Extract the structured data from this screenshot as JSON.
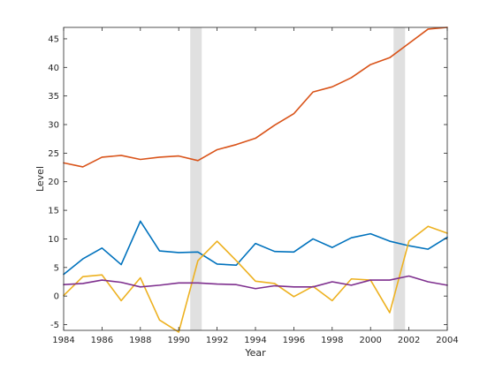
{
  "chart_data": {
    "type": "line",
    "title": "",
    "xlabel": "Year",
    "ylabel": "Level",
    "xlim": [
      1984,
      2004
    ],
    "ylim": [
      -6,
      47
    ],
    "xticks": [
      1984,
      1986,
      1988,
      1990,
      1992,
      1994,
      1996,
      1998,
      2000,
      2002,
      2004
    ],
    "yticks": [
      -5,
      0,
      5,
      10,
      15,
      20,
      25,
      30,
      35,
      40,
      45
    ],
    "grid": false,
    "legend": "none",
    "shaded_regions": [
      {
        "x_start": 1990.6,
        "x_end": 1991.2,
        "color": "#e0e0e0"
      },
      {
        "x_start": 2001.2,
        "x_end": 2001.8,
        "color": "#e0e0e0"
      }
    ],
    "x": [
      1984,
      1985,
      1986,
      1987,
      1988,
      1989,
      1990,
      1991,
      1992,
      1993,
      1994,
      1995,
      1996,
      1997,
      1998,
      1999,
      2000,
      2001,
      2002,
      2003,
      2004
    ],
    "series": [
      {
        "color": "#0072bd",
        "values": [
          3.8,
          6.5,
          8.4,
          5.5,
          13.1,
          7.9,
          7.6,
          7.7,
          5.6,
          5.4,
          9.2,
          7.8,
          7.7,
          10.0,
          8.5,
          10.2,
          10.9,
          9.6,
          8.8,
          8.2,
          10.3
        ]
      },
      {
        "color": "#d95319",
        "values": [
          23.3,
          22.6,
          24.3,
          24.6,
          23.9,
          24.3,
          24.5,
          23.7,
          25.6,
          26.5,
          27.6,
          29.9,
          31.9,
          35.7,
          36.6,
          38.2,
          40.5,
          41.7,
          44.2,
          46.7,
          47.0
        ]
      },
      {
        "color": "#edb120",
        "values": [
          0.1,
          3.4,
          3.7,
          -0.8,
          3.2,
          -4.2,
          -6.3,
          6.2,
          9.6,
          6.2,
          2.6,
          2.2,
          -0.1,
          1.7,
          -0.8,
          3.0,
          2.8,
          -2.9,
          9.6,
          12.2,
          11.0
        ]
      },
      {
        "color": "#7e2f8e",
        "values": [
          2.0,
          2.2,
          2.8,
          2.4,
          1.6,
          1.9,
          2.3,
          2.3,
          2.1,
          2.0,
          1.3,
          1.8,
          1.6,
          1.6,
          2.5,
          1.9,
          2.8,
          2.8,
          3.5,
          2.5,
          1.9
        ]
      }
    ]
  }
}
